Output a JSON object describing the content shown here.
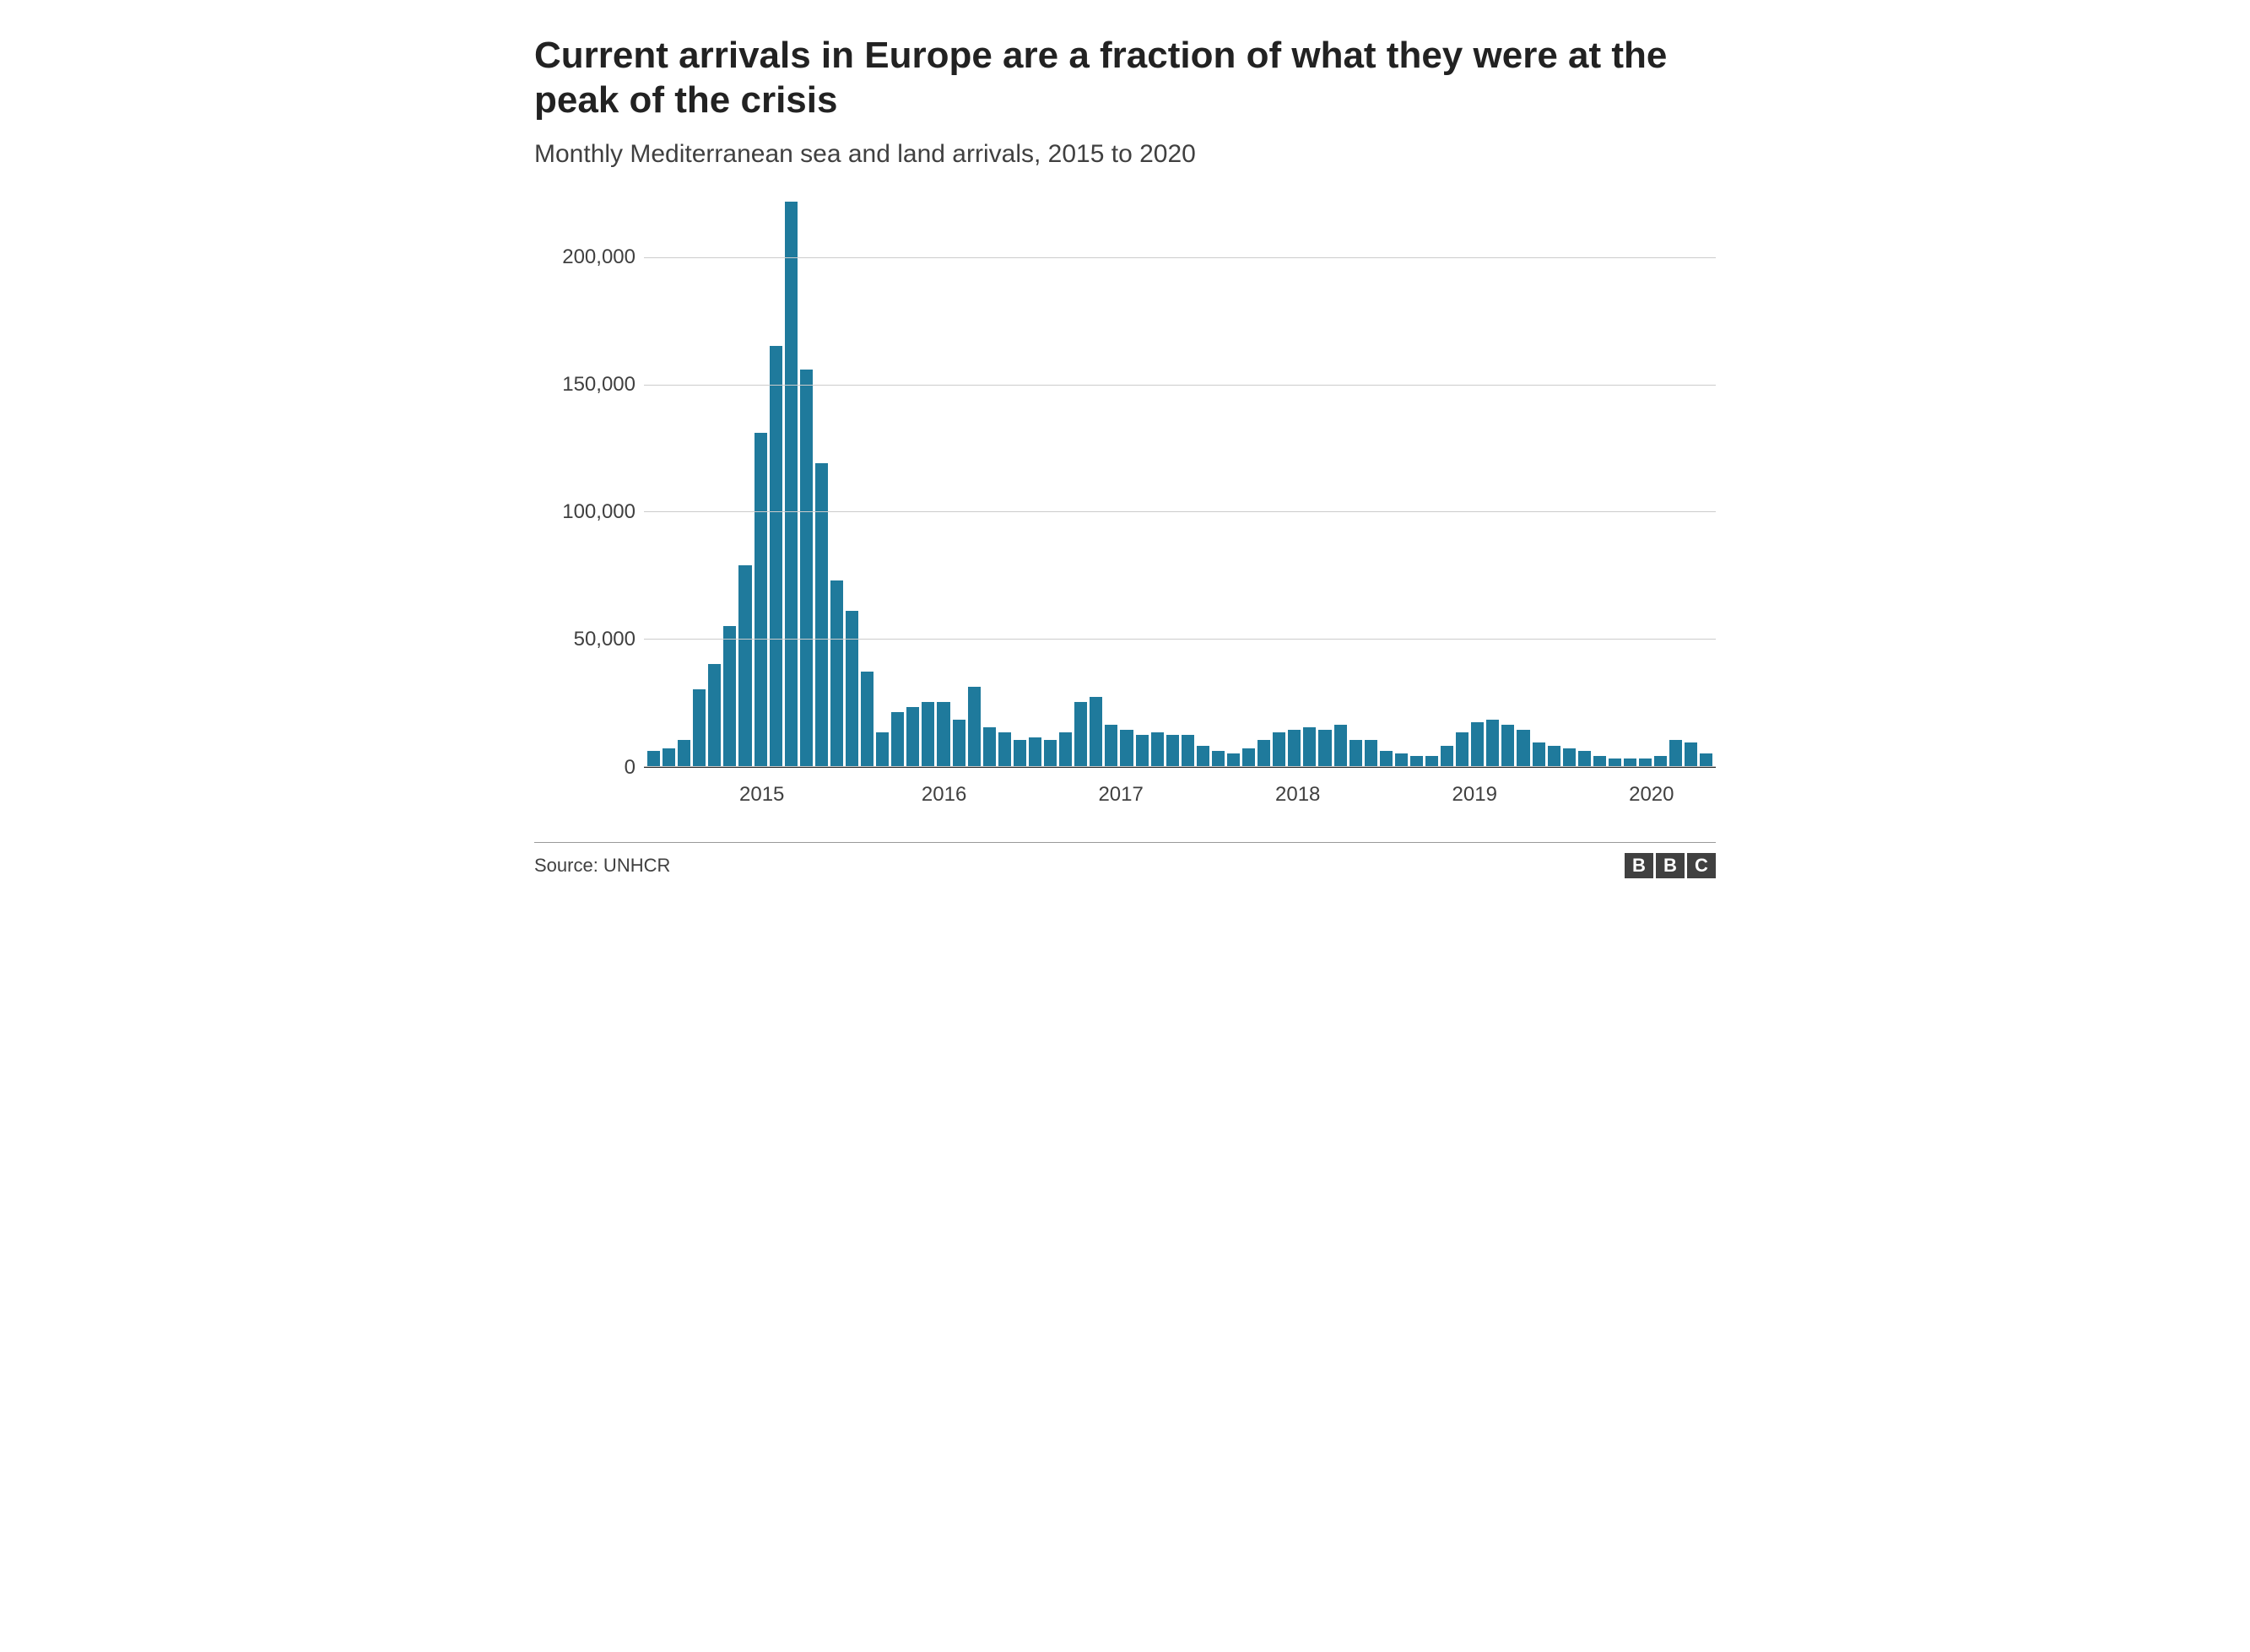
{
  "title": "Current arrivals in Europe are a fraction of what they were at the peak of the crisis",
  "subtitle": "Monthly Mediterranean sea and land arrivals, 2015 to 2020",
  "source": "Source: UNHCR",
  "logo_letters": [
    "B",
    "B",
    "C"
  ],
  "chart": {
    "type": "bar",
    "bar_color": "#1f7a9c",
    "background_color": "#ffffff",
    "grid_color": "#cccccc",
    "axis_color": "#222222",
    "text_color": "#404040",
    "title_fontsize": 44,
    "subtitle_fontsize": 30,
    "tick_fontsize": 24,
    "ylim": [
      0,
      225000
    ],
    "y_ticks": [
      0,
      50000,
      100000,
      150000,
      200000
    ],
    "y_tick_labels": [
      "0",
      "50,000",
      "100,000",
      "150,000",
      "200,000"
    ],
    "x_tick_labels": [
      "2015",
      "2016",
      "2017",
      "2018",
      "2019",
      "2020"
    ],
    "x_tick_positions_pct": [
      11,
      28,
      44.5,
      61,
      77.5,
      94
    ],
    "values": [
      6000,
      7000,
      10000,
      30000,
      40000,
      55000,
      79000,
      131000,
      165000,
      222000,
      156000,
      119000,
      73000,
      61000,
      37000,
      13000,
      21000,
      23000,
      25000,
      25000,
      18000,
      31000,
      15000,
      13000,
      10000,
      11000,
      10000,
      13000,
      25000,
      27000,
      16000,
      14000,
      12000,
      13000,
      12000,
      12000,
      8000,
      6000,
      5000,
      7000,
      10000,
      13000,
      14000,
      15000,
      14000,
      16000,
      10000,
      10000,
      6000,
      5000,
      4000,
      4000,
      8000,
      13000,
      17000,
      18000,
      16000,
      14000,
      9000,
      8000,
      7000,
      6000,
      4000,
      3000,
      3000,
      3000,
      4000,
      10000,
      9000,
      5000
    ]
  }
}
